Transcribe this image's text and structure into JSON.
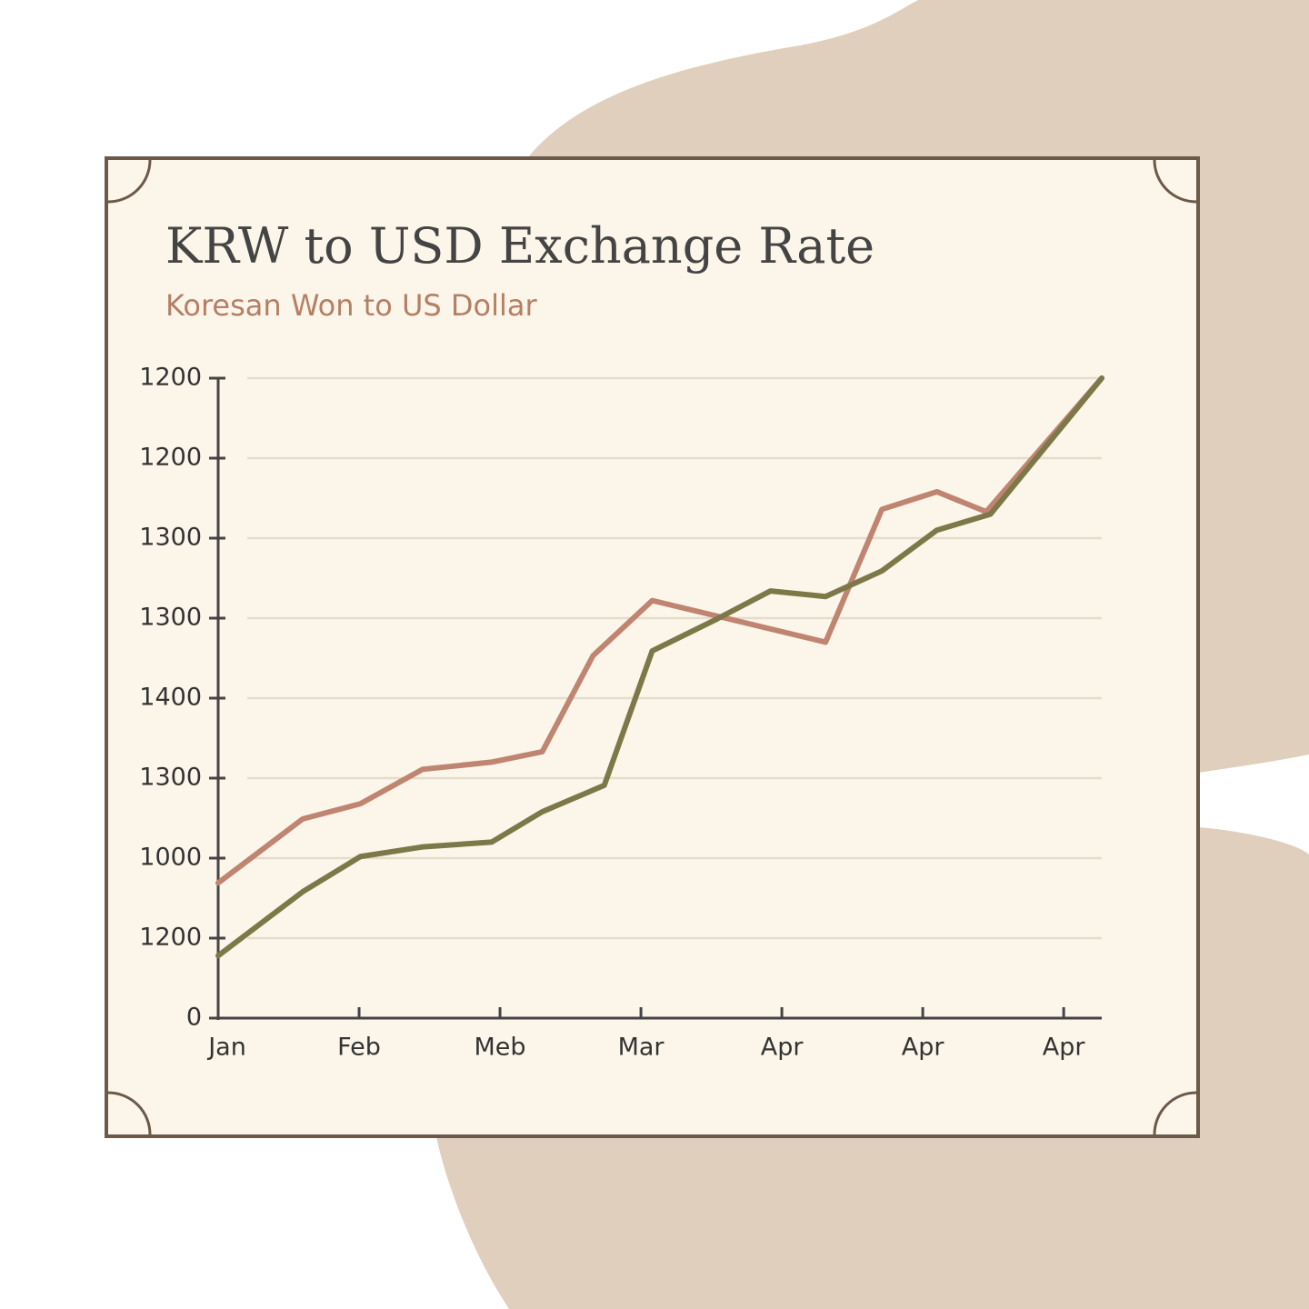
{
  "chart_data": {
    "type": "line",
    "title": "KRW to USD Exchange Rate",
    "subtitle": "Koresan Won to US Dollar",
    "xlim": [
      0,
      6.27
    ],
    "xticks": [
      {
        "value": 0,
        "label": "Jan"
      },
      {
        "value": 1,
        "label": "Feb"
      },
      {
        "value": 2,
        "label": "Meb"
      },
      {
        "value": 3,
        "label": "Mar"
      },
      {
        "value": 4,
        "label": "Apr"
      },
      {
        "value": 5,
        "label": "Apr"
      },
      {
        "value": 6,
        "label": "Apr"
      }
    ],
    "ylim": [
      0,
      8
    ],
    "yticks": [
      {
        "value": 0,
        "label": "0"
      },
      {
        "value": 1,
        "label": "1200"
      },
      {
        "value": 2,
        "label": "1000"
      },
      {
        "value": 3,
        "label": "1300"
      },
      {
        "value": 4,
        "label": "1400"
      },
      {
        "value": 5,
        "label": "1300"
      },
      {
        "value": 6,
        "label": "1300"
      },
      {
        "value": 7,
        "label": "1200"
      },
      {
        "value": 8,
        "label": "1200"
      }
    ],
    "grid": true,
    "series": [
      {
        "color": "#bf8571",
        "x": [
          0,
          0.6,
          1.01,
          1.45,
          1.94,
          2.3,
          2.66,
          3.08,
          4.31,
          4.71,
          5.1,
          5.45,
          6.27
        ],
        "values": [
          1.69,
          2.49,
          2.68,
          3.11,
          3.2,
          3.33,
          4.53,
          5.22,
          4.7,
          6.36,
          6.58,
          6.33,
          8
        ]
      },
      {
        "color": "#7d7848",
        "x": [
          0,
          0.6,
          1.01,
          1.45,
          1.94,
          2.3,
          2.74,
          3.08,
          3.54,
          3.92,
          4.31,
          4.71,
          5.1,
          5.48,
          6.27
        ],
        "values": [
          0.78,
          1.58,
          2.02,
          2.14,
          2.2,
          2.58,
          2.91,
          4.59,
          4.99,
          5.34,
          5.27,
          5.59,
          6.1,
          6.3,
          8
        ]
      }
    ]
  }
}
